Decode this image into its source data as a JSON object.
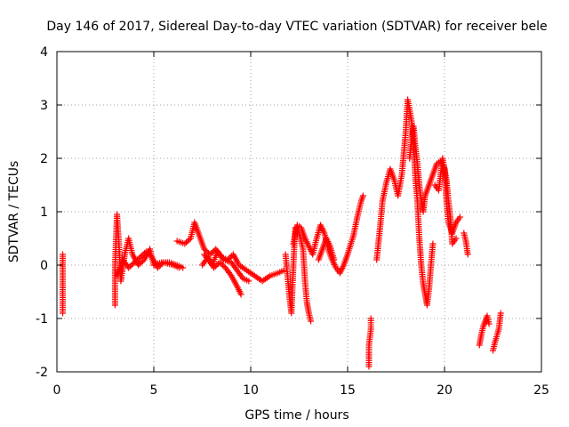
{
  "chart_data": {
    "type": "scatter",
    "title": "Day 146 of 2017, Sidereal Day-to-day VTEC variation (SDTVAR) for receiver bele",
    "xlabel": "GPS time / hours",
    "ylabel": "SDTVAR / TECUs",
    "xlim": [
      0,
      25
    ],
    "ylim": [
      -2,
      4
    ],
    "xticks": [
      0,
      5,
      10,
      15,
      20,
      25
    ],
    "yticks": [
      -2,
      -1,
      0,
      1,
      2,
      3,
      4
    ],
    "grid": true,
    "marker": "+",
    "color": "#ff0000",
    "series": [
      {
        "name": "SDTVAR",
        "segments": [
          [
            [
              0.3,
              0.2
            ],
            [
              0.3,
              -0.9
            ]
          ],
          [
            [
              3.0,
              -0.75
            ],
            [
              3.0,
              0.0
            ],
            [
              3.1,
              0.95
            ],
            [
              3.2,
              0.4
            ],
            [
              3.3,
              -0.3
            ],
            [
              3.5,
              0.2
            ],
            [
              3.7,
              0.5
            ],
            [
              3.9,
              0.2
            ],
            [
              4.2,
              0.0
            ],
            [
              4.5,
              0.1
            ],
            [
              4.8,
              0.3
            ],
            [
              5.0,
              0.0
            ]
          ],
          [
            [
              3.1,
              -0.2
            ],
            [
              3.4,
              0.1
            ],
            [
              3.7,
              -0.05
            ],
            [
              4.0,
              0.05
            ],
            [
              4.3,
              0.15
            ],
            [
              4.6,
              0.25
            ],
            [
              4.9,
              0.15
            ],
            [
              5.2,
              -0.05
            ],
            [
              5.5,
              0.05
            ],
            [
              6.0,
              0.0
            ],
            [
              6.3,
              -0.05
            ]
          ],
          [
            [
              5.0,
              0.0
            ],
            [
              5.4,
              0.05
            ],
            [
              5.8,
              0.05
            ],
            [
              6.2,
              0.0
            ],
            [
              6.5,
              -0.05
            ]
          ],
          [
            [
              6.2,
              0.45
            ],
            [
              6.6,
              0.4
            ],
            [
              6.9,
              0.5
            ],
            [
              7.1,
              0.8
            ],
            [
              7.3,
              0.6
            ],
            [
              7.6,
              0.3
            ],
            [
              7.9,
              0.2
            ],
            [
              8.2,
              0.3
            ],
            [
              8.5,
              0.15
            ],
            [
              8.8,
              0.1
            ],
            [
              9.1,
              0.2
            ],
            [
              9.4,
              0.0
            ],
            [
              9.8,
              -0.1
            ],
            [
              10.2,
              -0.2
            ],
            [
              10.6,
              -0.3
            ],
            [
              11.0,
              -0.2
            ],
            [
              11.4,
              -0.15
            ],
            [
              11.7,
              -0.1
            ]
          ],
          [
            [
              7.5,
              0.0
            ],
            [
              7.8,
              0.15
            ],
            [
              8.1,
              -0.05
            ],
            [
              8.4,
              0.05
            ],
            [
              8.7,
              -0.05
            ],
            [
              9.0,
              -0.2
            ],
            [
              9.3,
              -0.4
            ],
            [
              9.5,
              -0.55
            ]
          ],
          [
            [
              7.6,
              0.2
            ],
            [
              8.0,
              0.0
            ],
            [
              8.3,
              0.25
            ],
            [
              8.6,
              0.1
            ],
            [
              9.0,
              0.05
            ],
            [
              9.3,
              -0.1
            ],
            [
              9.6,
              -0.25
            ],
            [
              9.9,
              -0.3
            ]
          ],
          [
            [
              11.8,
              0.2
            ],
            [
              11.9,
              -0.2
            ],
            [
              12.0,
              -0.6
            ],
            [
              12.1,
              -0.9
            ],
            [
              12.2,
              0.0
            ],
            [
              12.3,
              0.7
            ],
            [
              12.5,
              0.6
            ],
            [
              12.7,
              0.3
            ],
            [
              12.8,
              -0.3
            ],
            [
              12.9,
              -0.7
            ],
            [
              13.0,
              -0.9
            ],
            [
              13.1,
              -1.05
            ]
          ],
          [
            [
              12.2,
              0.4
            ],
            [
              12.4,
              0.75
            ],
            [
              12.6,
              0.7
            ],
            [
              12.8,
              0.5
            ],
            [
              13.0,
              0.35
            ],
            [
              13.2,
              0.2
            ],
            [
              13.4,
              0.5
            ],
            [
              13.6,
              0.75
            ],
            [
              13.8,
              0.6
            ],
            [
              14.0,
              0.3
            ],
            [
              14.2,
              0.1
            ],
            [
              14.4,
              -0.05
            ],
            [
              14.6,
              -0.15
            ],
            [
              14.8,
              0.0
            ],
            [
              15.0,
              0.2
            ],
            [
              15.3,
              0.55
            ],
            [
              15.5,
              0.9
            ],
            [
              15.7,
              1.2
            ],
            [
              15.8,
              1.3
            ]
          ],
          [
            [
              13.5,
              0.1
            ],
            [
              13.7,
              0.3
            ],
            [
              13.9,
              0.5
            ],
            [
              14.1,
              0.35
            ],
            [
              14.3,
              0.1
            ]
          ],
          [
            [
              16.1,
              -1.9
            ],
            [
              16.1,
              -1.5
            ],
            [
              16.2,
              -1.2
            ],
            [
              16.2,
              -1.0
            ]
          ],
          [
            [
              16.5,
              0.1
            ],
            [
              16.6,
              0.45
            ],
            [
              16.7,
              0.8
            ],
            [
              16.8,
              1.2
            ],
            [
              17.0,
              1.55
            ],
            [
              17.2,
              1.8
            ],
            [
              17.4,
              1.6
            ],
            [
              17.6,
              1.3
            ],
            [
              17.8,
              1.7
            ],
            [
              17.9,
              2.1
            ],
            [
              18.0,
              2.5
            ],
            [
              18.1,
              3.1
            ],
            [
              18.3,
              2.7
            ],
            [
              18.4,
              2.3
            ],
            [
              18.5,
              1.6
            ],
            [
              18.6,
              1.2
            ],
            [
              18.7,
              0.5
            ],
            [
              18.8,
              0.0
            ],
            [
              18.9,
              -0.35
            ],
            [
              19.0,
              -0.55
            ],
            [
              19.1,
              -0.75
            ],
            [
              19.2,
              -0.45
            ],
            [
              19.3,
              0.0
            ],
            [
              19.4,
              0.4
            ]
          ],
          [
            [
              18.2,
              2.0
            ],
            [
              18.3,
              2.4
            ],
            [
              18.4,
              2.6
            ],
            [
              18.5,
              2.2
            ],
            [
              18.6,
              1.9
            ],
            [
              18.7,
              1.5
            ],
            [
              18.8,
              1.2
            ],
            [
              18.9,
              1.0
            ],
            [
              19.0,
              1.3
            ],
            [
              19.2,
              1.5
            ],
            [
              19.4,
              1.7
            ],
            [
              19.6,
              1.9
            ],
            [
              19.8,
              1.95
            ],
            [
              20.0,
              1.8
            ],
            [
              20.1,
              1.2
            ],
            [
              20.2,
              0.8
            ],
            [
              20.4,
              0.6
            ],
            [
              20.6,
              0.8
            ],
            [
              20.8,
              0.9
            ]
          ],
          [
            [
              19.5,
              1.5
            ],
            [
              19.7,
              1.4
            ],
            [
              19.9,
              2.0
            ],
            [
              20.1,
              1.6
            ],
            [
              20.2,
              1.2
            ],
            [
              20.3,
              0.9
            ],
            [
              20.4,
              0.4
            ],
            [
              20.6,
              0.5
            ]
          ],
          [
            [
              21.0,
              0.6
            ],
            [
              21.1,
              0.45
            ],
            [
              21.2,
              0.2
            ]
          ],
          [
            [
              21.8,
              -1.5
            ],
            [
              21.9,
              -1.3
            ],
            [
              22.0,
              -1.15
            ],
            [
              22.1,
              -1.05
            ],
            [
              22.2,
              -0.95
            ],
            [
              22.3,
              -1.1
            ]
          ],
          [
            [
              22.5,
              -1.6
            ],
            [
              22.6,
              -1.45
            ],
            [
              22.8,
              -1.2
            ],
            [
              22.9,
              -0.9
            ]
          ]
        ]
      }
    ]
  }
}
